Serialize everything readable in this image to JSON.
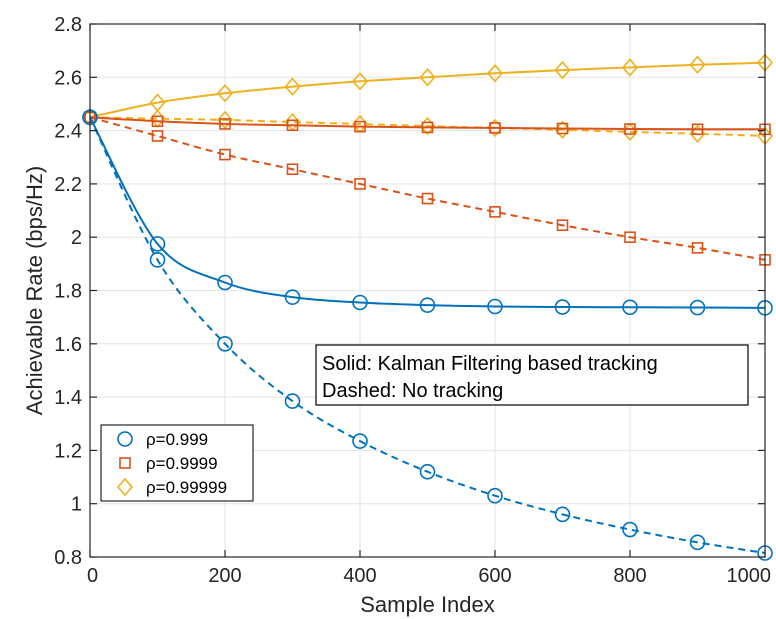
{
  "chart_data": {
    "type": "line",
    "title": "",
    "xlabel": "Sample Index",
    "ylabel": "Achievable Rate (bps/Hz)",
    "xlim": [
      0,
      1000
    ],
    "ylim": [
      0.8,
      2.8
    ],
    "xticks": [
      0,
      200,
      400,
      600,
      800,
      1000
    ],
    "yticks": [
      0.8,
      1,
      1.2,
      1.4,
      1.6,
      1.8,
      2,
      2.2,
      2.4,
      2.6,
      2.8
    ],
    "xtick_labels": [
      "0",
      "200",
      "400",
      "600",
      "800",
      "1000"
    ],
    "ytick_labels": [
      "0.8",
      "1",
      "1.2",
      "1.4",
      "1.6",
      "1.8",
      "2",
      "2.2",
      "2.4",
      "2.6",
      "2.8"
    ],
    "grid": true,
    "legend_position": "bottom-left",
    "annotation": [
      "Solid: Kalman Filtering based tracking",
      "Dashed: No tracking"
    ],
    "colors": {
      "blue": "#0072BD",
      "orange": "#D95319",
      "yellow": "#EDB120",
      "grid": "#e3e3e3",
      "axis": "#262626"
    },
    "x": [
      0,
      100,
      200,
      300,
      400,
      500,
      600,
      700,
      800,
      900,
      1000
    ],
    "series": [
      {
        "name": "ρ=0.999",
        "group": "rho-0.999",
        "style": "solid",
        "color": "#0072BD",
        "marker": "circle",
        "values": [
          2.45,
          1.975,
          1.83,
          1.775,
          1.755,
          1.745,
          1.74,
          1.738,
          1.737,
          1.736,
          1.735
        ]
      },
      {
        "name": "ρ=0.999",
        "group": "rho-0.999",
        "style": "dashed",
        "color": "#0072BD",
        "marker": "circle",
        "values": [
          2.45,
          1.915,
          1.6,
          1.385,
          1.235,
          1.12,
          1.03,
          0.96,
          0.903,
          0.855,
          0.815
        ]
      },
      {
        "name": "ρ=0.9999",
        "group": "rho-0.9999",
        "style": "solid",
        "color": "#D95319",
        "marker": "square",
        "values": [
          2.45,
          2.435,
          2.425,
          2.42,
          2.415,
          2.412,
          2.41,
          2.408,
          2.406,
          2.405,
          2.405
        ]
      },
      {
        "name": "ρ=0.9999",
        "group": "rho-0.9999",
        "style": "dashed",
        "color": "#D95319",
        "marker": "square",
        "values": [
          2.45,
          2.38,
          2.31,
          2.255,
          2.2,
          2.145,
          2.095,
          2.045,
          2.0,
          1.96,
          1.915
        ]
      },
      {
        "name": "ρ=0.99999",
        "group": "rho-0.99999",
        "style": "solid",
        "color": "#EDB120",
        "marker": "diamond",
        "values": [
          2.45,
          2.505,
          2.54,
          2.565,
          2.585,
          2.6,
          2.615,
          2.627,
          2.637,
          2.647,
          2.655
        ]
      },
      {
        "name": "ρ=0.99999",
        "group": "rho-0.99999",
        "style": "dashed",
        "color": "#EDB120",
        "marker": "diamond",
        "values": [
          2.45,
          2.445,
          2.44,
          2.432,
          2.425,
          2.417,
          2.41,
          2.403,
          2.395,
          2.388,
          2.38
        ]
      }
    ],
    "legend": [
      {
        "label": "ρ=0.999",
        "color": "#0072BD",
        "marker": "circle"
      },
      {
        "label": "ρ=0.9999",
        "color": "#D95319",
        "marker": "square"
      },
      {
        "label": "ρ=0.99999",
        "color": "#EDB120",
        "marker": "diamond"
      }
    ]
  }
}
